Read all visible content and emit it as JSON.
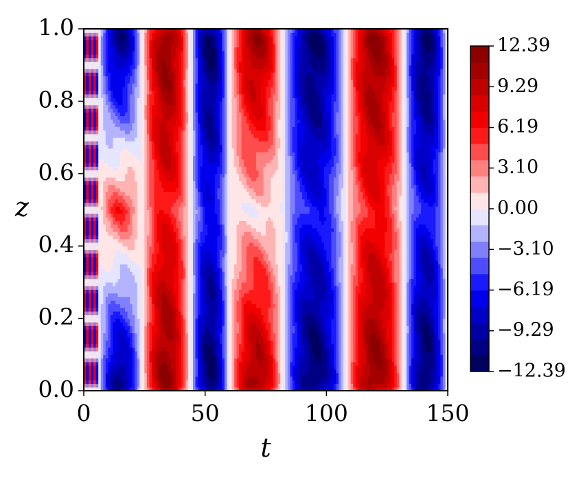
{
  "chart_data": {
    "type": "heatmap",
    "xlabel": "t",
    "ylabel": "z",
    "xlim": [
      0,
      150
    ],
    "ylim": [
      0.0,
      1.0
    ],
    "x_ticks": [
      "0",
      "50",
      "100",
      "150"
    ],
    "y_ticks": [
      "0.0",
      "0.2",
      "0.4",
      "0.6",
      "0.8",
      "1.0"
    ],
    "colormap": "seismic",
    "color_range": [
      -12.39,
      12.39
    ],
    "colorbar_ticks": [
      "12.39",
      "9.29",
      "6.19",
      "3.10",
      "0.00",
      "−3.10",
      "−6.19",
      "−9.29",
      "−12.39"
    ],
    "colors": {
      "neg_extreme": "#00004c",
      "neg": "#0000ff",
      "zero": "#ffffff",
      "pos": "#ff0000",
      "pos_extreme": "#7f0000"
    },
    "bands": [
      {
        "t": [
          0,
          6
        ],
        "wall_sign": "mixed",
        "note": "fine oscillating stripes"
      },
      {
        "t": [
          6,
          24
        ],
        "wall_sign": -1,
        "center_sign": 1
      },
      {
        "t": [
          24,
          44
        ],
        "wall_sign": 1,
        "center_sign": 1
      },
      {
        "t": [
          44,
          60
        ],
        "wall_sign": -1,
        "center_sign": -1
      },
      {
        "t": [
          60,
          82
        ],
        "wall_sign": 1,
        "center_sign": 0
      },
      {
        "t": [
          82,
          108
        ],
        "wall_sign": -1,
        "center_sign": -1
      },
      {
        "t": [
          108,
          132
        ],
        "wall_sign": 1,
        "center_sign": 1
      },
      {
        "t": [
          132,
          150
        ],
        "wall_sign": -1,
        "center_sign": -1
      }
    ]
  }
}
